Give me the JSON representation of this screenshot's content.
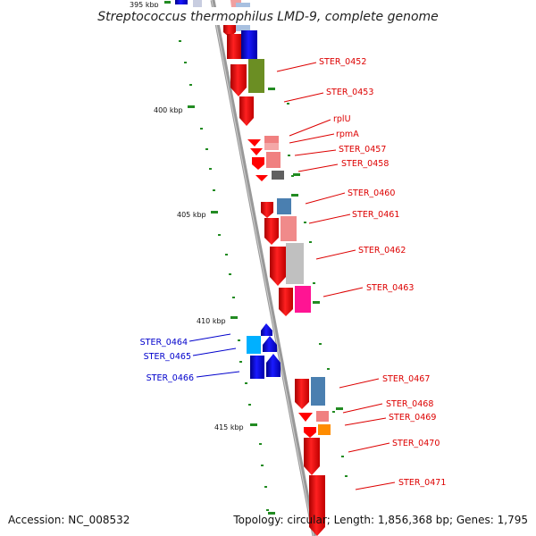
{
  "title": "Streptococcus thermophilus LMD-9, complete genome",
  "footer": {
    "accession": "Accession: NC_008532",
    "topology": "Topology: circular; Length: 1,856,368 bp; Genes: 1,795"
  },
  "ticks": [
    "395 kbp",
    "400 kbp",
    "405 kbp",
    "410 kbp",
    "415 kbp"
  ],
  "genes_right": [
    "STER_0452",
    "STER_0453",
    "rplU",
    "rpmA",
    "STER_0457",
    "STER_0458",
    "STER_0460",
    "STER_0461",
    "STER_0462",
    "STER_0463",
    "STER_0467",
    "STER_0468",
    "STER_0469",
    "STER_0470",
    "STER_0471"
  ],
  "genes_left": [
    "STER_0464",
    "STER_0465",
    "STER_0466"
  ],
  "colors": {
    "forward_gene": "#ff0000",
    "reverse_gene": "#0000ee",
    "right_label": "#dd0000",
    "left_label": "#0000cc",
    "tick_mark": "#228b22",
    "backbone": "#999999"
  }
}
